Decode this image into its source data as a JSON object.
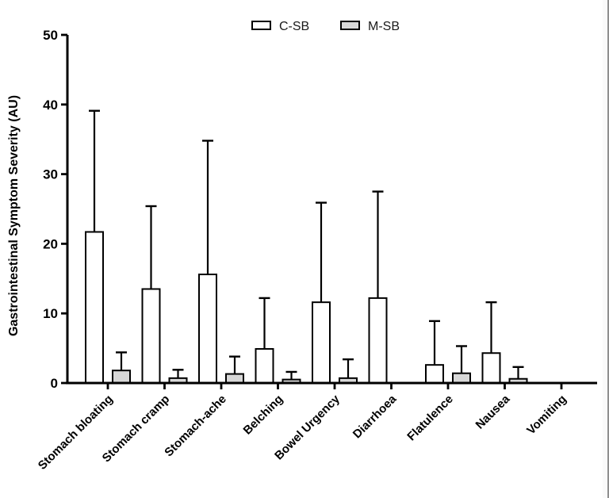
{
  "figure": {
    "background": "#ffffff",
    "edge_line_color": "#8f8f8f"
  },
  "chart_data": {
    "type": "bar",
    "title": "",
    "xlabel": "",
    "ylabel": "Gastrointestinal Symptom Severity (AU)",
    "ylim": [
      0,
      50
    ],
    "yticks": [
      0,
      10,
      20,
      30,
      40,
      50
    ],
    "grid": false,
    "legend_position": "top-center",
    "error_bars": "upper-only with caps",
    "stroke_color": "#000000",
    "categories": [
      "Stomach bloating",
      "Stomach cramp",
      "Stomach-ache",
      "Belching",
      "Bowel Urgency",
      "Diarrhoea",
      "Flatulence",
      "Nausea",
      "Vomiting"
    ],
    "series": [
      {
        "name": "C-SB",
        "fill": "#ffffff",
        "values": [
          21.7,
          13.5,
          15.6,
          4.9,
          11.6,
          12.2,
          2.6,
          4.3,
          0
        ],
        "errors_upper": [
          17.4,
          11.9,
          19.2,
          7.3,
          14.3,
          15.3,
          6.3,
          7.3,
          0
        ]
      },
      {
        "name": "M-SB",
        "fill": "#d8d8d8",
        "values": [
          1.8,
          0.7,
          1.3,
          0.5,
          0.7,
          0,
          1.4,
          0.6,
          0
        ],
        "errors_upper": [
          2.6,
          1.2,
          2.5,
          1.1,
          2.7,
          0,
          3.9,
          1.7,
          0
        ]
      }
    ]
  }
}
